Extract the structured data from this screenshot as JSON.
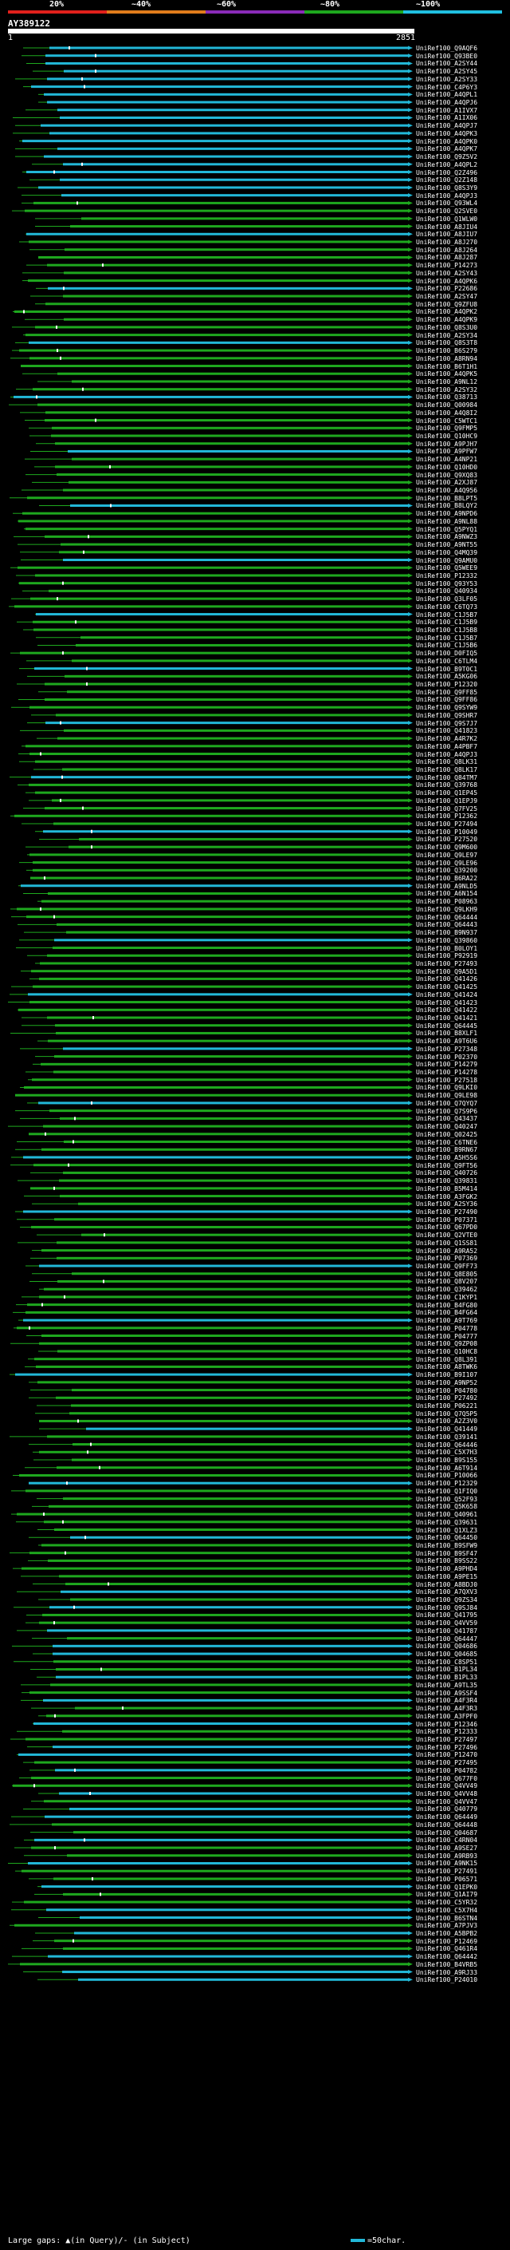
{
  "scale": {
    "labels": [
      "20%",
      "~40%",
      "~60%",
      "~80%",
      "~100%"
    ],
    "colors": [
      "#e0201c",
      "#e07c1c",
      "#8a2bb8",
      "#1ea81e",
      "#20c0e0"
    ]
  },
  "query": {
    "name": "AY389122",
    "start": "1",
    "end": "2851"
  },
  "colors": {
    "identity_high": "#22b8d8",
    "identity_mid": "#1ea81e",
    "background": "#000000",
    "gap": "#ffffff"
  },
  "hits": [
    "UniRef100_Q9AQF6",
    "UniRef100_Q93BE0",
    "UniRef100_A2SY44",
    "UniRef100_A2SY45",
    "UniRef100_A2SY33",
    "UniRef100_C4P6Y3",
    "UniRef100_A4QPL1",
    "UniRef100_A4QPJ6",
    "UniRef100_A1IVX7",
    "UniRef100_A1IX06",
    "UniRef100_A4QPJ7",
    "UniRef100_A4QPK3",
    "UniRef100_A4QPK0",
    "UniRef100_A4QPK7",
    "UniRef100_Q9Z5V2",
    "UniRef100_A4QPL2",
    "UniRef100_Q2Z496",
    "UniRef100_Q2Z148",
    "UniRef100_Q8S3Y9",
    "UniRef100_A4QPJ3",
    "UniRef100_Q93WL4",
    "UniRef100_Q2SVE0",
    "UniRef100_Q1WLW0",
    "UniRef100_A8JIU4",
    "UniRef100_A8JIU7",
    "UniRef100_A8J270",
    "UniRef100_A8J264",
    "UniRef100_A8J287",
    "UniRef100_P14273",
    "UniRef100_A2SY43",
    "UniRef100_A4QPK6",
    "UniRef100_P22686",
    "UniRef100_A2SY47",
    "UniRef100_Q9ZFU8",
    "UniRef100_A4QPK2",
    "UniRef100_A4QPK9",
    "UniRef100_Q8S3U0",
    "UniRef100_A2SY34",
    "UniRef100_Q8S3T8",
    "UniRef100_B6S279",
    "UniRef100_A8RN94",
    "UniRef100_B6T1H1",
    "UniRef100_A4QPK5",
    "UniRef100_A9NL12",
    "UniRef100_A2SY32",
    "UniRef100_Q38713",
    "UniRef100_Q00984",
    "UniRef100_A4Q8I2",
    "UniRef100_C5WTC1",
    "UniRef100_Q9FMP5",
    "UniRef100_Q10HC9",
    "UniRef100_A9PJH7",
    "UniRef100_A9PFW7",
    "UniRef100_A4NP21",
    "UniRef100_Q10HD0",
    "UniRef100_Q9XQ83",
    "UniRef100_A2XJ87",
    "UniRef100_A4Q956",
    "UniRef100_B8LPT5",
    "UniRef100_B8LQY2",
    "UniRef100_A9NPD6",
    "UniRef100_A9NL88",
    "UniRef100_Q5PYQ1",
    "UniRef100_A9NWZ3",
    "UniRef100_A9NT55",
    "UniRef100_Q4MQ39",
    "UniRef100_Q9AMU0",
    "UniRef100_Q5WEE9",
    "UniRef100_P12332",
    "UniRef100_Q93Y53",
    "UniRef100_Q40934",
    "UniRef100_Q3LF05",
    "UniRef100_C6TQ73",
    "UniRef100_C1J5B7",
    "UniRef100_C1J5B9",
    "UniRef100_C1J5B8",
    "UniRef100_C1J5B7",
    "UniRef100_C1J5B6",
    "UniRef100_D0FIQ5",
    "UniRef100_C6TLM4",
    "UniRef100_B9T0C1",
    "UniRef100_A5KG06",
    "UniRef100_P12320",
    "UniRef100_Q9FF85",
    "UniRef100_Q9FF86",
    "UniRef100_Q9SYW9",
    "UniRef100_Q9SHR7",
    "UniRef100_Q9S7J7",
    "UniRef100_Q41823",
    "UniRef100_A4R7K2",
    "UniRef100_A4PBF7",
    "UniRef100_A4QPJ3",
    "UniRef100_Q8LK31",
    "UniRef100_Q8LK17",
    "UniRef100_Q84TM7",
    "UniRef100_Q39768",
    "UniRef100_Q1EP45",
    "UniRef100_Q1EPJ9",
    "UniRef100_Q7FV25",
    "UniRef100_P12362",
    "UniRef100_P27494",
    "UniRef100_P10049",
    "UniRef100_P27520",
    "UniRef100_Q9M600",
    "UniRef100_Q9LE97",
    "UniRef100_Q9LE96",
    "UniRef100_Q39200",
    "UniRef100_B6RA22",
    "UniRef100_A9NLD5",
    "UniRef100_A6N154",
    "UniRef100_P08963",
    "UniRef100_Q9LKH9",
    "UniRef100_Q64444",
    "UniRef100_Q64443",
    "UniRef100_B9N937",
    "UniRef100_Q39860",
    "UniRef100_B0LOY1",
    "UniRef100_P92919",
    "UniRef100_P27493",
    "UniRef100_Q9A5D1",
    "UniRef100_Q41426",
    "UniRef100_Q41425",
    "UniRef100_Q41424",
    "UniRef100_Q41423",
    "UniRef100_Q41422",
    "UniRef100_Q41421",
    "UniRef100_Q64445",
    "UniRef100_B8XLF1",
    "UniRef100_A9T6U6",
    "UniRef100_P27348",
    "UniRef100_P02370",
    "UniRef100_P14279",
    "UniRef100_P14278",
    "UniRef100_P27518",
    "UniRef100_Q9LKI0",
    "UniRef100_Q9LE98",
    "UniRef100_Q7QYQ7",
    "UniRef100_Q7S9P6",
    "UniRef100_Q43437",
    "UniRef100_Q40247",
    "UniRef100_Q02425",
    "UniRef100_C6TNE6",
    "UniRef100_B9RN67",
    "UniRef100_A5H5S6",
    "UniRef100_Q9FT56",
    "UniRef100_Q40726",
    "UniRef100_Q39831",
    "UniRef100_B5M414",
    "UniRef100_A3FGK2",
    "UniRef100_A2SY36",
    "UniRef100_P27490",
    "UniRef100_P07371",
    "UniRef100_Q67PD0",
    "UniRef100_Q2VTE0",
    "UniRef100_Q1SS81",
    "UniRef100_A9RA52",
    "UniRef100_P07369",
    "UniRef100_Q9FF73",
    "UniRef100_Q8E805",
    "UniRef100_Q8V207",
    "UniRef100_Q39462",
    "UniRef100_C1KYP1",
    "UniRef100_B4FG80",
    "UniRef100_B4FG64",
    "UniRef100_A9T769",
    "UniRef100_P04778",
    "UniRef100_P04777",
    "UniRef100_Q9ZP08",
    "UniRef100_Q10HC8",
    "UniRef100_Q8L391",
    "UniRef100_A8TWK6",
    "UniRef100_B9I107",
    "UniRef100_A9NP52",
    "UniRef100_P04780",
    "UniRef100_P27492",
    "UniRef100_P06221",
    "UniRef100_Q7Q5P5",
    "UniRef100_A2Z3V0",
    "UniRef100_Q41449",
    "UniRef100_Q39141",
    "UniRef100_Q64446",
    "UniRef100_C5X7H3",
    "UniRef100_B9S155",
    "UniRef100_A6T914",
    "UniRef100_P10066",
    "UniRef100_P12329",
    "UniRef100_Q1FIQ0",
    "UniRef100_Q52F93",
    "UniRef100_Q5K658",
    "UniRef100_Q40961",
    "UniRef100_Q39631",
    "UniRef100_Q1XLZ3",
    "UniRef100_Q64450",
    "UniRef100_B9SFW9",
    "UniRef100_B9SF47",
    "UniRef100_B9SS22",
    "UniRef100_A9PHD4",
    "UniRef100_A9PE15",
    "UniRef100_A8BDJ0",
    "UniRef100_A7QXV3",
    "UniRef100_Q9ZS34",
    "UniRef100_Q9SJ84",
    "UniRef100_Q41795",
    "UniRef100_Q4VV59",
    "UniRef100_Q41787",
    "UniRef100_Q64447",
    "UniRef100_Q04686",
    "UniRef100_Q04685",
    "UniRef100_C8SP51",
    "UniRef100_B1PL34",
    "UniRef100_B1PL33",
    "UniRef100_A9TL35",
    "UniRef100_A9SSF4",
    "UniRef100_A4F3R4",
    "UniRef100_A4F3R3",
    "UniRef100_A3FPF0",
    "UniRef100_P12346",
    "UniRef100_P12333",
    "UniRef100_P27497",
    "UniRef100_P27496",
    "UniRef100_P12470",
    "UniRef100_P27495",
    "UniRef100_P04782",
    "UniRef100_Q677F0",
    "UniRef100_Q4VV49",
    "UniRef100_Q4VV48",
    "UniRef100_Q4VV47",
    "UniRef100_Q40779",
    "UniRef100_Q64449",
    "UniRef100_Q64448",
    "UniRef100_Q04687",
    "UniRef100_C4RN04",
    "UniRef100_A9SE27",
    "UniRef100_A9RB93",
    "UniRef100_A9NK15",
    "UniRef100_P27491",
    "UniRef100_P06571",
    "UniRef100_Q1EPK0",
    "UniRef100_Q1AI79",
    "UniRef100_C5YR32",
    "UniRef100_C5X7H4",
    "UniRef100_B6STN4",
    "UniRef100_A7PJV3",
    "UniRef100_A5BPB2",
    "UniRef100_P12469",
    "UniRef100_Q461R4",
    "UniRef100_Q64442",
    "UniRef100_B4VRB5",
    "UniRef100_A9RJ33",
    "UniRef100_P24010"
  ],
  "legend": {
    "gaps_text": "Large gaps: ▲(in Query)/- (in Subject)",
    "scale_text": "=50char."
  }
}
